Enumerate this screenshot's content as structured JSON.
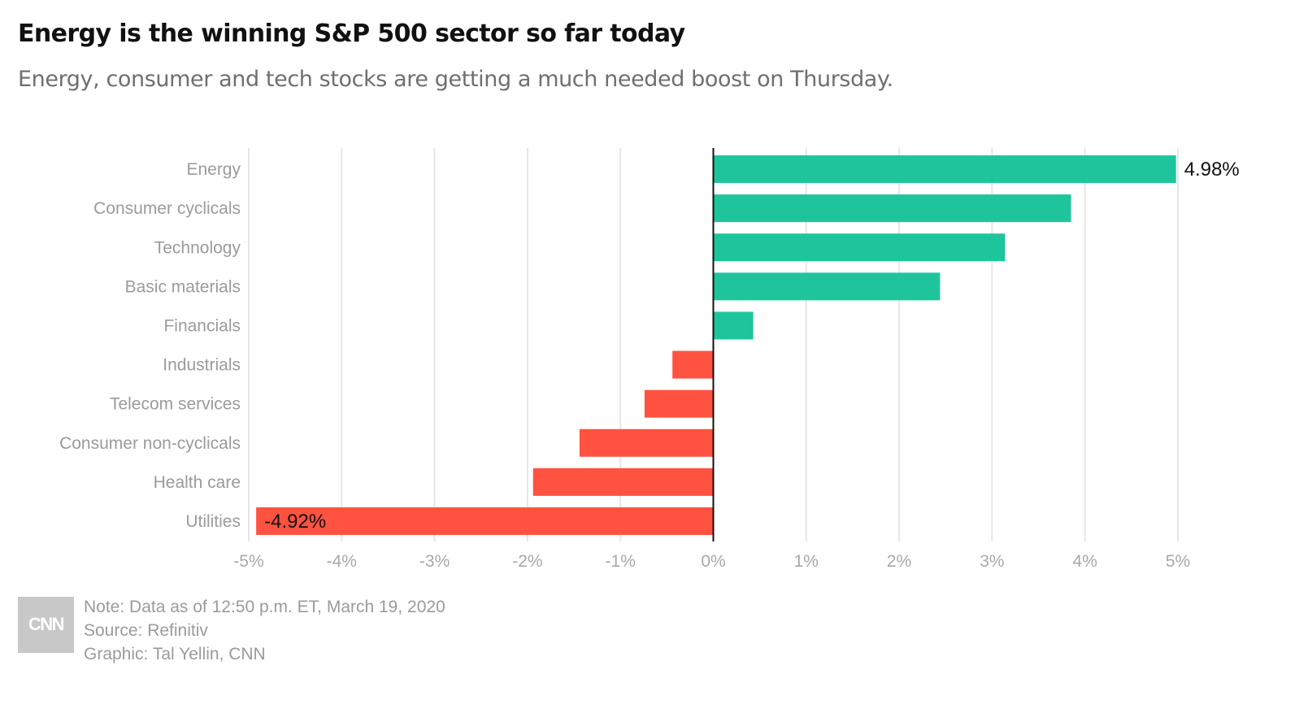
{
  "header": {
    "title": "Energy is the winning S&P 500 sector so far today",
    "subtitle": "Energy, consumer and tech stocks are getting a much needed boost on Thursday."
  },
  "chart_data": {
    "type": "bar",
    "orientation": "horizontal",
    "categories": [
      "Energy",
      "Consumer cyclicals",
      "Technology",
      "Basic materials",
      "Financials",
      "Industrials",
      "Telecom services",
      "Consumer non-cyclicals",
      "Health care",
      "Utilities"
    ],
    "values": [
      4.98,
      3.85,
      3.14,
      2.44,
      0.43,
      -0.44,
      -0.74,
      -1.44,
      -1.94,
      -4.92
    ],
    "data_labels": [
      {
        "category": "Energy",
        "text": "4.98%"
      },
      {
        "category": "Utilities",
        "text": "-4.92%"
      }
    ],
    "xlim": [
      -5,
      5
    ],
    "x_ticks": [
      -5,
      -4,
      -3,
      -2,
      -1,
      0,
      1,
      2,
      3,
      4,
      5
    ],
    "x_tick_labels": [
      "-5%",
      "-4%",
      "-3%",
      "-2%",
      "-1%",
      "0%",
      "1%",
      "2%",
      "3%",
      "4%",
      "5%"
    ],
    "grid": "vertical",
    "colors": {
      "positive": "#1ec59c",
      "negative": "#ff5241",
      "grid": "#e6e6e6",
      "zero_line": "#111111"
    }
  },
  "footer": {
    "logo_text": "CNN",
    "note": "Note: Data as of 12:50 p.m. ET, March 19, 2020",
    "source": "Source: Refinitiv",
    "graphic": "Graphic: Tal Yellin, CNN"
  }
}
